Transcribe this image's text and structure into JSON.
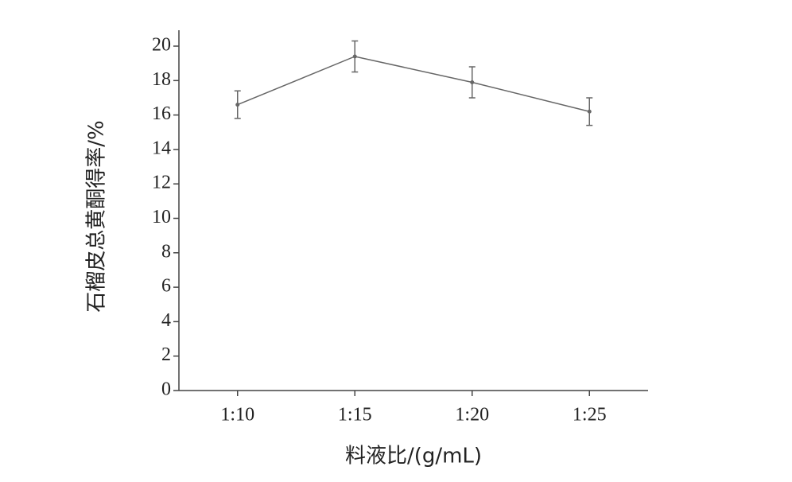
{
  "chart_data": {
    "type": "line",
    "x_label": "料液比/(g/mL)",
    "y_label": "石榴皮总黄酮得率/%",
    "categories": [
      "1:10",
      "1:15",
      "1:20",
      "1:25"
    ],
    "values": [
      16.6,
      19.4,
      17.9,
      16.2
    ],
    "errors": [
      0.8,
      0.9,
      0.9,
      0.8
    ],
    "color": "#666666",
    "ylim": [
      0,
      20
    ],
    "yticks": [
      0,
      2,
      4,
      6,
      8,
      10,
      12,
      14,
      16,
      18,
      20
    ]
  }
}
